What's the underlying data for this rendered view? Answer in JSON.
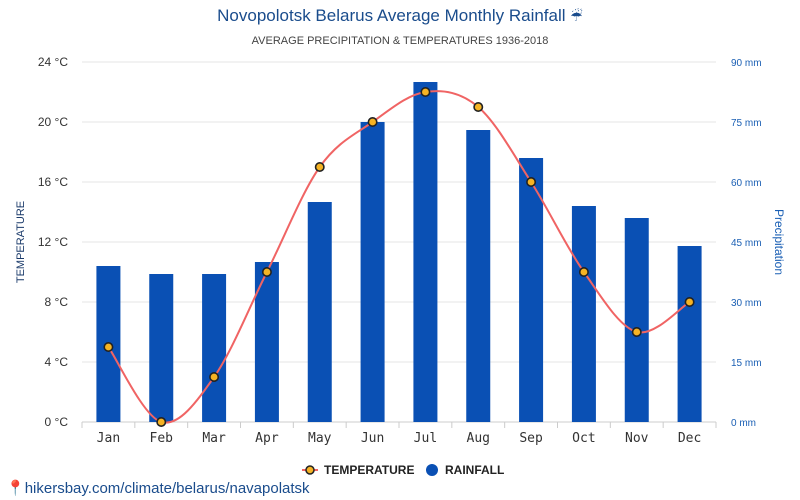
{
  "header": {
    "title": "Novopolotsk Belarus Average Monthly Rainfall",
    "title_icon": "umbrella-rain-icon",
    "subtitle": "AVERAGE PRECIPITATION & TEMPERATURES 1936-2018"
  },
  "footer": {
    "url": "hikersbay.com/climate/belarus/navapolatsk",
    "icon": "map-pin-icon"
  },
  "legend": {
    "temperature": "TEMPERATURE",
    "rainfall": "RAINFALL"
  },
  "colors": {
    "bar": "#0a50b4",
    "line": "#f06464",
    "marker_fill": "#f5b324",
    "marker_stroke": "#222222",
    "grid": "#e6e6e6",
    "right_axis": "#1a5fb4"
  },
  "chart_data": {
    "type": "bar",
    "categories": [
      "Jan",
      "Feb",
      "Mar",
      "Apr",
      "May",
      "Jun",
      "Jul",
      "Aug",
      "Sep",
      "Oct",
      "Nov",
      "Dec"
    ],
    "series": [
      {
        "name": "RAINFALL",
        "type": "bar",
        "axis": "right",
        "values": [
          39,
          37,
          37,
          40,
          55,
          75,
          85,
          73,
          66,
          54,
          51,
          44
        ]
      },
      {
        "name": "TEMPERATURE",
        "type": "line",
        "axis": "left",
        "values": [
          5,
          0,
          3,
          10,
          17,
          20,
          22,
          21,
          16,
          10,
          6,
          8
        ]
      }
    ],
    "ylabel": "TEMPERATURE",
    "ylabel_right": "Precipitation",
    "ylim": [
      0,
      24
    ],
    "ylim_right": [
      0,
      90
    ],
    "yticks": [
      "0 °C",
      "4 °C",
      "8 °C",
      "12 °C",
      "16 °C",
      "20 °C",
      "24 °C"
    ],
    "yticks_right": [
      "0 mm",
      "15 mm",
      "30 mm",
      "45 mm",
      "60 mm",
      "75 mm",
      "90 mm"
    ],
    "grid": true,
    "legend_position": "bottom"
  }
}
